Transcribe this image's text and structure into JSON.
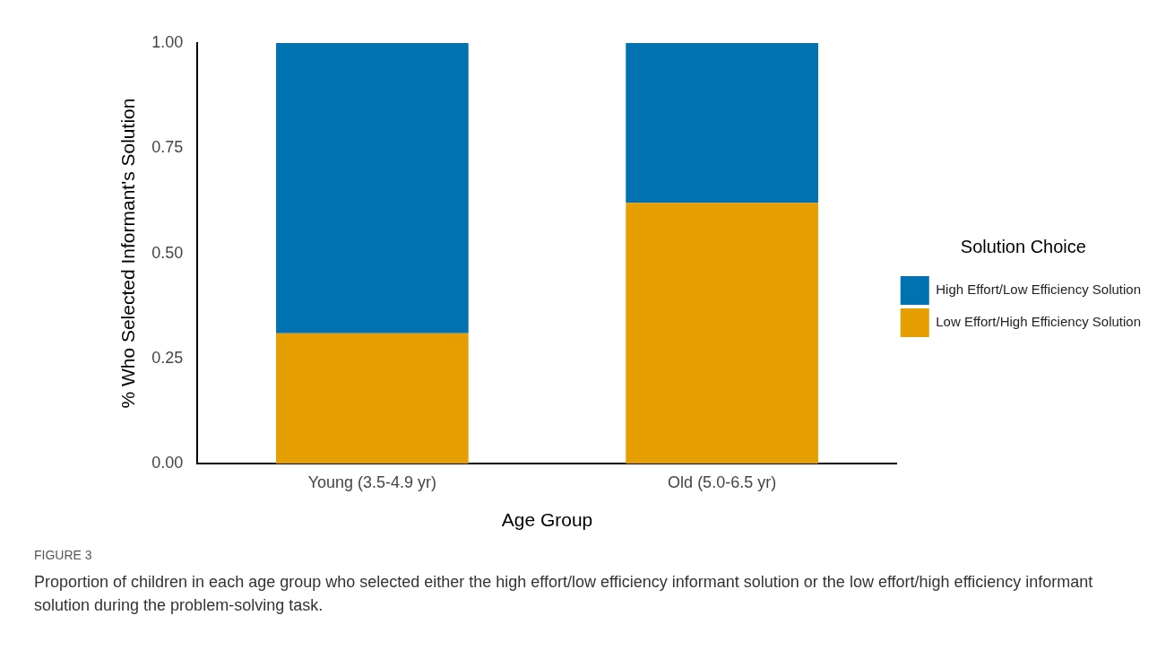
{
  "chart_data": {
    "type": "bar",
    "stacked": true,
    "xlabel": "Age Group",
    "ylabel": "% Who Selected Informant's Solution",
    "legend_title": "Solution Choice",
    "legend": "right",
    "grid": false,
    "categories": [
      "Young (3.5-4.9 yr)",
      "Old (5.0-6.5 yr)"
    ],
    "series": [
      {
        "name": "Low Effort/High Efficiency Solution",
        "color": "#e69f00",
        "values": [
          0.31,
          0.62
        ]
      },
      {
        "name": "High Effort/Low Efficiency Solution",
        "color": "#0072b2",
        "values": [
          0.69,
          0.38
        ]
      }
    ],
    "ylim": [
      0,
      1
    ],
    "yticks": [
      {
        "value": 0,
        "label": "0.00"
      },
      {
        "value": 0.25,
        "label": "0.25"
      },
      {
        "value": 0.5,
        "label": "0.50"
      },
      {
        "value": 0.75,
        "label": "0.75"
      },
      {
        "value": 1,
        "label": "1.00"
      }
    ],
    "annotations": [
      "FIGURE 3",
      "Proportion of children in each age group who selected either the high effort/low efficiency informant solution or the low effort/high efficiency informant solution during the problem-solving task."
    ]
  }
}
